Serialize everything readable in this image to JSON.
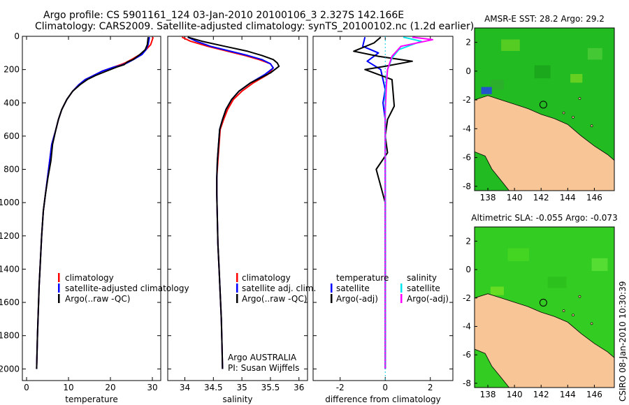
{
  "header": {
    "line1": "Argo profile: CS 5901161_124 03-Jan-2010 20100106_3 2.327S 142.166E",
    "line2": "Climatology: CARS2009. Satellite-adjusted climatology: synTS_20100102.nc (1.2d earlier)"
  },
  "footer": {
    "stamp": "CSIRO 08-Jan-2010 10:30:39"
  },
  "colors": {
    "climatology": "#ff0000",
    "satellite": "#0000ff",
    "argo": "#000000",
    "salinity_satellite": "#00e5ee",
    "salinity_argo": "#ff00ff",
    "land": "#f7c596",
    "sst_water": "#22bb22",
    "sla_water": "#33cc22"
  },
  "chart_data": [
    {
      "type": "line",
      "id": "temperature",
      "xlabel": "temperature",
      "xlim": [
        -1,
        32
      ],
      "ylim": [
        2070,
        0
      ],
      "xticks": [
        "0",
        "10",
        "20",
        "30"
      ],
      "yticks": [
        "0",
        "200",
        "400",
        "600",
        "800",
        "1000",
        "1200",
        "1400",
        "1600",
        "1800",
        "2000"
      ],
      "legend": [
        "climatology",
        "satellite-adjusted climatology",
        "Argo(..raw -QC)"
      ],
      "series": [
        {
          "name": "climatology",
          "color": "#ff0000",
          "x": [
            30.2,
            29.6,
            28.5,
            27.0,
            25.0,
            23.5,
            22.5,
            20.8,
            18.0,
            16.0,
            14.0,
            12.5,
            11.0,
            9.6,
            8.4,
            7.6,
            7.0,
            6.0,
            5.5,
            5.0,
            4.5,
            4.0,
            3.6,
            3.3,
            3.0,
            2.8,
            2.6,
            2.5,
            2.4
          ],
          "y": [
            5,
            50,
            80,
            110,
            140,
            160,
            170,
            185,
            210,
            235,
            260,
            290,
            330,
            380,
            440,
            500,
            560,
            650,
            750,
            850,
            950,
            1050,
            1200,
            1350,
            1500,
            1650,
            1800,
            1900,
            2000
          ]
        },
        {
          "name": "satellite-adjusted climatology",
          "color": "#0000ff",
          "x": [
            29.3,
            29.0,
            28.5,
            27.5,
            25.5,
            24.0,
            22.5,
            20.8,
            18.0,
            16.0,
            14.0,
            12.5,
            11.0,
            9.6,
            8.4,
            7.6,
            7.0,
            6.0,
            5.5,
            5.0,
            4.5,
            4.0,
            3.6,
            3.3,
            3.0,
            2.8,
            2.6,
            2.5,
            2.4
          ],
          "y": [
            5,
            50,
            80,
            110,
            140,
            160,
            175,
            185,
            210,
            235,
            260,
            290,
            330,
            380,
            440,
            500,
            560,
            650,
            750,
            850,
            950,
            1050,
            1200,
            1350,
            1500,
            1650,
            1800,
            1900,
            2000
          ]
        },
        {
          "name": "Argo(..raw -QC)",
          "color": "#000000",
          "x": [
            29.0,
            28.8,
            28.3,
            27.0,
            25.4,
            24.0,
            23.3,
            21.5,
            19.0,
            16.5,
            14.5,
            12.8,
            11.0,
            9.6,
            8.4,
            7.6,
            7.0,
            6.2,
            5.8,
            5.1,
            4.5,
            4.0,
            3.6,
            3.3,
            3.0,
            2.8,
            2.6,
            2.5,
            2.4
          ],
          "y": [
            5,
            50,
            80,
            110,
            140,
            155,
            170,
            185,
            210,
            235,
            260,
            290,
            330,
            380,
            440,
            500,
            560,
            650,
            750,
            850,
            950,
            1050,
            1200,
            1350,
            1500,
            1650,
            1800,
            1900,
            2000
          ]
        }
      ]
    },
    {
      "type": "line",
      "id": "salinity",
      "xlabel": "salinity",
      "xlim": [
        33.7,
        36.15
      ],
      "ylim": [
        2070,
        0
      ],
      "xticks": [
        "34",
        "34.5",
        "35",
        "35.5",
        "36"
      ],
      "legend": [
        "climatology",
        "satellite adj. clim.",
        "Argo(..raw -QC)"
      ],
      "annotation": [
        "Argo AUSTRALIA",
        "PI: Susan Wijffels"
      ],
      "series": [
        {
          "name": "climatology",
          "color": "#ff0000",
          "x": [
            33.95,
            34.1,
            34.4,
            34.75,
            35.05,
            35.3,
            35.5,
            35.55,
            35.45,
            35.2,
            35.0,
            34.85,
            34.75,
            34.68,
            34.62,
            34.6,
            34.58,
            34.56,
            34.56,
            34.57,
            34.58,
            34.6,
            34.62,
            34.64,
            34.65,
            34.66
          ],
          "y": [
            5,
            30,
            60,
            90,
            115,
            140,
            165,
            190,
            230,
            280,
            330,
            380,
            440,
            500,
            560,
            650,
            750,
            850,
            950,
            1100,
            1250,
            1400,
            1550,
            1700,
            1850,
            2000
          ]
        },
        {
          "name": "satellite adj. clim.",
          "color": "#0000ff",
          "x": [
            34.05,
            34.2,
            34.45,
            34.8,
            35.1,
            35.35,
            35.5,
            35.55,
            35.4,
            35.15,
            34.95,
            34.82,
            34.72,
            34.66,
            34.61,
            34.59,
            34.57,
            34.56,
            34.56,
            34.57,
            34.58,
            34.6,
            34.62,
            34.64,
            34.65,
            34.66
          ],
          "y": [
            5,
            30,
            60,
            90,
            115,
            140,
            165,
            190,
            230,
            280,
            330,
            380,
            440,
            500,
            560,
            650,
            750,
            850,
            950,
            1100,
            1250,
            1400,
            1550,
            1700,
            1850,
            2000
          ]
        },
        {
          "name": "Argo(..raw -QC)",
          "color": "#000000",
          "x": [
            34.05,
            34.3,
            34.7,
            35.1,
            35.35,
            35.55,
            35.62,
            35.65,
            35.5,
            35.15,
            34.95,
            34.82,
            34.72,
            34.66,
            34.61,
            34.59,
            34.57,
            34.56,
            34.56,
            34.57,
            34.58,
            34.6,
            34.62,
            34.64,
            34.65,
            34.66
          ],
          "y": [
            5,
            30,
            60,
            90,
            115,
            140,
            160,
            180,
            220,
            280,
            330,
            380,
            440,
            500,
            560,
            650,
            750,
            850,
            950,
            1100,
            1250,
            1400,
            1550,
            1700,
            1850,
            2000
          ]
        }
      ]
    },
    {
      "type": "line",
      "id": "difference",
      "xlabel": "difference from climatology",
      "xlim": [
        -3.2,
        3.0
      ],
      "ylim": [
        2070,
        0
      ],
      "xticks": [
        "-2",
        "0",
        "2"
      ],
      "legend": [
        "temperature",
        "satellite",
        "Argo(-adj)",
        "salinity",
        "satellite",
        "Argo(-adj)"
      ],
      "series": [
        {
          "name": "temperature satellite",
          "color": "#0000ff",
          "x": [
            -0.9,
            -1.0,
            -0.3,
            -0.8,
            -0.2,
            -0.1,
            0.0,
            -0.1,
            0.0,
            0.0,
            0.0,
            0.0,
            0.0,
            0.0,
            0.0
          ],
          "y": [
            5,
            60,
            100,
            150,
            200,
            260,
            320,
            400,
            500,
            650,
            900,
            1200,
            1500,
            1800,
            2000
          ]
        },
        {
          "name": "temperature Argo(-adj)",
          "color": "#000000",
          "x": [
            -0.2,
            -0.5,
            -1.4,
            -0.3,
            1.2,
            0.0,
            -0.9,
            0.3,
            0.4,
            0.1,
            0.0,
            0.1,
            -0.4,
            0.0,
            0.0,
            0.0,
            0.0
          ],
          "y": [
            5,
            40,
            90,
            120,
            150,
            180,
            200,
            260,
            420,
            500,
            600,
            700,
            800,
            1000,
            1300,
            1700,
            2000
          ]
        },
        {
          "name": "salinity satellite",
          "color": "#00e5ee",
          "x": [
            0.8,
            1.6,
            0.6,
            0.3,
            0.1,
            0.05,
            0.0,
            0.0,
            0.0,
            0.0,
            0.0,
            0.0,
            0.0
          ],
          "y": [
            5,
            30,
            80,
            130,
            200,
            260,
            350,
            450,
            600,
            900,
            1300,
            1700,
            2000
          ]
        },
        {
          "name": "salinity Argo(-adj)",
          "color": "#ff00ff",
          "x": [
            1.2,
            2.1,
            0.7,
            0.3,
            0.1,
            0.05,
            0.0,
            0.0,
            0.0,
            0.0,
            0.0
          ],
          "y": [
            5,
            20,
            60,
            120,
            200,
            300,
            450,
            700,
            1100,
            1600,
            2000
          ]
        }
      ]
    }
  ],
  "maps": [
    {
      "id": "sst",
      "title": "AMSR-E SST: 28.2  Argo: 29.2",
      "xticks": [
        "138",
        "140",
        "142",
        "144",
        "146"
      ],
      "yticks": [
        "2",
        "0",
        "-2",
        "-4",
        "-6",
        "-8"
      ],
      "xlim": [
        137,
        147.5
      ],
      "ylim": [
        -8.3,
        3
      ],
      "marker": {
        "lon": 142.166,
        "lat": -2.327
      }
    },
    {
      "id": "sla",
      "title": "Altimetric SLA: -0.055  Argo: -0.073",
      "xticks": [
        "138",
        "140",
        "142",
        "144",
        "146"
      ],
      "yticks": [
        "2",
        "0",
        "-2",
        "-4",
        "-6",
        "-8"
      ],
      "xlim": [
        137,
        147.5
      ],
      "ylim": [
        -8.3,
        3
      ],
      "marker": {
        "lon": 142.166,
        "lat": -2.327
      }
    }
  ]
}
